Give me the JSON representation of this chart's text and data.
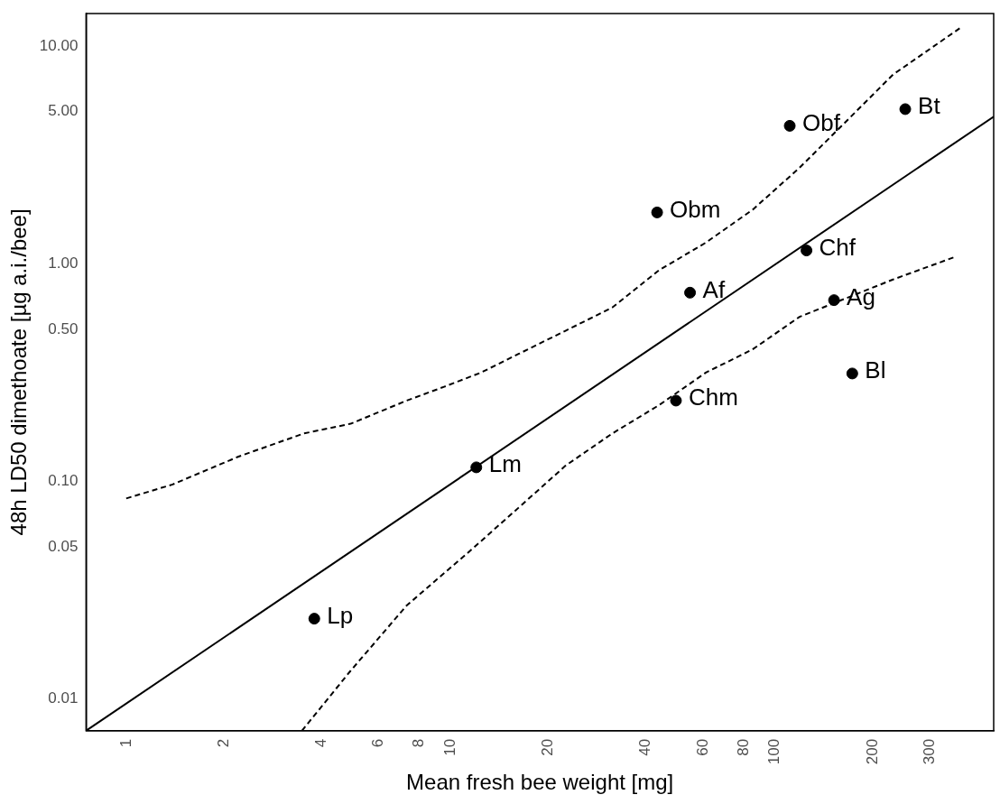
{
  "chart_data": {
    "type": "scatter",
    "xlabel": "Mean fresh bee weight [mg]",
    "ylabel": "48h LD50 dimethoate [µg a.i./bee]",
    "log": "xy",
    "grid": false,
    "legend": false,
    "marker": "circle",
    "xlim": [
      0.752,
      472
    ],
    "ylim": [
      0.00715,
      14.1
    ],
    "xticks": [
      1,
      2,
      4,
      6,
      8,
      10,
      20,
      40,
      60,
      80,
      100,
      200,
      300
    ],
    "yticks": [
      0.01,
      0.05,
      {
        "value": 0.1,
        "label": "0.10"
      },
      {
        "value": 0.5,
        "label": "0.50"
      },
      {
        "value": 1,
        "label": "1.00"
      },
      {
        "value": 5,
        "label": "5.00"
      },
      {
        "value": 10,
        "label": "10.00"
      }
    ],
    "series": [
      {
        "type": "scatter",
        "color": "#000000",
        "x": [
          3.8,
          12.0,
          49.5,
          54.7,
          43.3,
          111,
          125,
          152,
          173,
          252
        ],
        "values": [
          0.0234,
          0.116,
          0.235,
          0.736,
          1.72,
          4.3,
          1.15,
          0.68,
          0.313,
          5.13
        ]
      },
      {
        "type": "line",
        "color": "#000000",
        "line_style": "solid",
        "marker": "none",
        "x": [
          0.752,
          472
        ],
        "values": [
          0.00715,
          4.74
        ]
      },
      {
        "type": "line",
        "color": "#000000",
        "line_style": "dashed",
        "marker": "none",
        "x": [
          1,
          1.39,
          2.22,
          3.53,
          4.92,
          7.32,
          9.55,
          12.4,
          16.2,
          22.6,
          31.5,
          43.9,
          61.2,
          85.3,
          119,
          166,
          231,
          372
        ],
        "values": [
          0.0835,
          0.0968,
          0.13,
          0.166,
          0.184,
          0.235,
          0.272,
          0.316,
          0.385,
          0.492,
          0.629,
          0.933,
          1.25,
          1.77,
          2.76,
          4.52,
          7.39,
          12.1
        ]
      },
      {
        "type": "line",
        "color": "#000000",
        "line_style": "dashed",
        "marker": "none",
        "x": [
          3.48,
          4.92,
          7.32,
          11.6,
          16.2,
          22.6,
          31.5,
          43.9,
          61.2,
          85.3,
          119,
          166,
          231,
          362
        ],
        "values": [
          0.00715,
          0.0135,
          0.0269,
          0.0486,
          0.0757,
          0.118,
          0.166,
          0.224,
          0.316,
          0.404,
          0.57,
          0.695,
          0.846,
          1.08
        ]
      }
    ],
    "annotations": [
      {
        "text": "Lp",
        "x": 3.8,
        "y": 0.0234
      },
      {
        "text": "Lm",
        "x": 12.0,
        "y": 0.116
      },
      {
        "text": "Chm",
        "x": 49.5,
        "y": 0.235
      },
      {
        "text": "Af",
        "x": 54.7,
        "y": 0.736
      },
      {
        "text": "Obm",
        "x": 43.3,
        "y": 1.72
      },
      {
        "text": "Obf",
        "x": 111,
        "y": 4.3
      },
      {
        "text": "Chf",
        "x": 125,
        "y": 1.15
      },
      {
        "text": "Ag",
        "x": 152,
        "y": 0.68
      },
      {
        "text": "Bl",
        "x": 173,
        "y": 0.313
      },
      {
        "text": "Bt",
        "x": 252,
        "y": 5.13
      }
    ]
  }
}
